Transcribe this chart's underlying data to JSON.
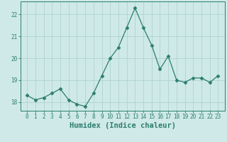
{
  "x": [
    0,
    1,
    2,
    3,
    4,
    5,
    6,
    7,
    8,
    9,
    10,
    11,
    12,
    13,
    14,
    15,
    16,
    17,
    18,
    19,
    20,
    21,
    22,
    23
  ],
  "y": [
    18.3,
    18.1,
    18.2,
    18.4,
    18.6,
    18.1,
    17.9,
    17.8,
    18.4,
    19.2,
    20.0,
    20.5,
    21.4,
    22.3,
    21.4,
    20.6,
    19.5,
    20.1,
    19.0,
    18.9,
    19.1,
    19.1,
    18.9,
    19.2
  ],
  "line_color": "#2d7d6e",
  "marker": "D",
  "marker_size": 2.5,
  "bg_color": "#cee9e8",
  "grid_color": "#aed4d2",
  "xlabel": "Humidex (Indice chaleur)",
  "ylim": [
    17.6,
    22.6
  ],
  "yticks": [
    18,
    19,
    20,
    21,
    22
  ],
  "xticks": [
    0,
    1,
    2,
    3,
    4,
    5,
    6,
    7,
    8,
    9,
    10,
    11,
    12,
    13,
    14,
    15,
    16,
    17,
    18,
    19,
    20,
    21,
    22,
    23
  ],
  "tick_color": "#2d7d6e",
  "tick_fontsize": 5.5,
  "xlabel_fontsize": 7.5
}
